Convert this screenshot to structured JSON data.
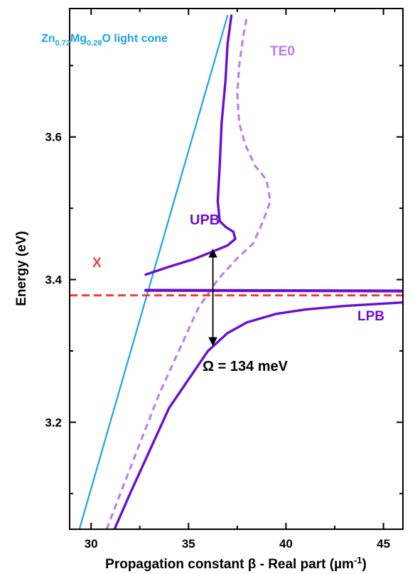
{
  "chart_data": {
    "type": "line",
    "xlabel": {
      "main": "Propagation constant β - Real part (µm",
      "sup": "-1",
      "tail": ")"
    },
    "ylabel": "Energy (eV)",
    "xlim": [
      28.9,
      46.0
    ],
    "ylim": [
      3.05,
      3.78
    ],
    "xticks": [
      30,
      35,
      40,
      45
    ],
    "yticks": [
      3.2,
      3.4,
      3.6
    ],
    "ytick_labels": [
      "3.2",
      "3.4",
      "3.6"
    ],
    "grid": false,
    "colors": {
      "light_cone": "#1aa3e8",
      "polariton": "#6a0fd0",
      "te0": "#b77cf0",
      "exciton": "#f03c3c"
    },
    "series": [
      {
        "id": "light_cone",
        "style": "solid-thin",
        "x": [
          29.4,
          37.0
        ],
        "y": [
          3.05,
          3.77
        ]
      },
      {
        "id": "te0",
        "style": "dashed",
        "x": [
          30.8,
          31.5,
          32.5,
          33.5,
          34.5,
          35.5,
          36.5,
          37.5,
          38.3,
          38.8,
          39.2,
          39.0,
          38.4,
          37.9,
          37.6,
          37.5,
          37.6,
          37.8,
          38.0
        ],
        "y": [
          3.05,
          3.1,
          3.17,
          3.24,
          3.3,
          3.36,
          3.4,
          3.43,
          3.45,
          3.48,
          3.51,
          3.54,
          3.56,
          3.59,
          3.62,
          3.66,
          3.7,
          3.74,
          3.77
        ]
      },
      {
        "id": "upb",
        "style": "solid",
        "x": [
          32.8,
          34.0,
          35.2,
          36.3,
          37.0,
          37.4,
          37.3,
          36.9,
          36.6,
          36.5,
          36.6,
          36.7,
          36.9,
          37.0,
          37.2
        ],
        "y": [
          3.407,
          3.418,
          3.428,
          3.44,
          3.448,
          3.457,
          3.467,
          3.474,
          3.482,
          3.51,
          3.56,
          3.62,
          3.68,
          3.73,
          3.77
        ]
      },
      {
        "id": "lpb",
        "style": "solid",
        "x": [
          31.2,
          32.0,
          33.0,
          34.0,
          35.0,
          36.0,
          37.0,
          38.0,
          39.5,
          41.0,
          43.0,
          46.0
        ],
        "y": [
          3.05,
          3.1,
          3.16,
          3.22,
          3.26,
          3.3,
          3.325,
          3.34,
          3.352,
          3.358,
          3.363,
          3.368
        ]
      },
      {
        "id": "exciton_branch",
        "style": "solid",
        "x": [
          32.8,
          46.0
        ],
        "y": [
          3.385,
          3.384
        ]
      },
      {
        "id": "exciton_level",
        "style": "dashed",
        "x": [
          28.9,
          46.0
        ],
        "y": [
          3.378,
          3.378
        ]
      }
    ],
    "rabi_arrow": {
      "x": 36.25,
      "y_from": 3.307,
      "y_to": 3.443
    },
    "annotations": {
      "light_cone_label": {
        "parts": [
          [
            "Zn",
            "base"
          ],
          [
            "0.72",
            "sub"
          ],
          [
            "Mg",
            "base"
          ],
          [
            "0.28",
            "sub"
          ],
          [
            "O light cone",
            "base"
          ]
        ]
      },
      "te0_label": "TE0",
      "upb_label": "UPB",
      "lpb_label": "LPB",
      "exciton_label": "X",
      "rabi_label": "Ω = 134 meV"
    }
  }
}
